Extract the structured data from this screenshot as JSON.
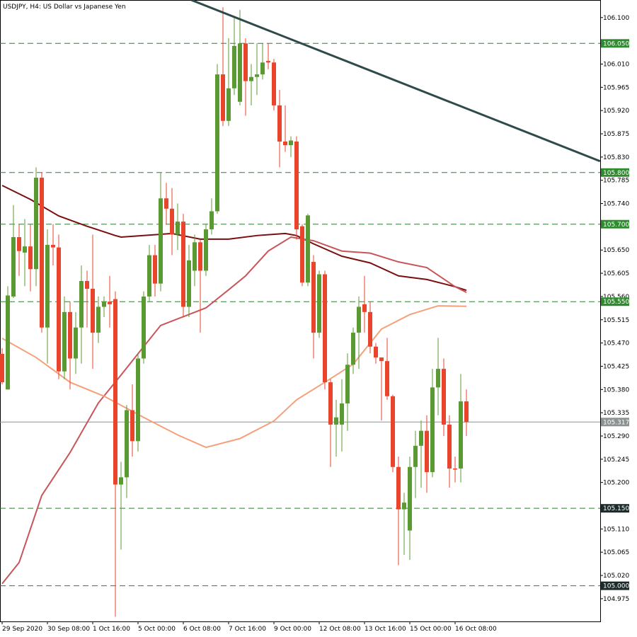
{
  "chart_data": {
    "type": "candlestick",
    "title": "USDJPY, H4:  US Dollar vs Japanese Yen",
    "up_color": "#5b9a32",
    "down_color": "#e8452c",
    "xlim": [
      -0.375,
      105.625
    ],
    "ylim": [
      104.931,
      106.134
    ],
    "xticks": [
      {
        "value": 0,
        "label": "29 Sep 2020"
      },
      {
        "value": 8,
        "label": "30 Sep 08:00"
      },
      {
        "value": 16,
        "label": "1 Oct 16:00"
      },
      {
        "value": 24,
        "label": "5 Oct 00:00"
      },
      {
        "value": 32,
        "label": "6 Oct 08:00"
      },
      {
        "value": 40,
        "label": "7 Oct 16:00"
      },
      {
        "value": 48,
        "label": "9 Oct 00:00"
      },
      {
        "value": 56,
        "label": "12 Oct 08:00"
      },
      {
        "value": 64,
        "label": "13 Oct 16:00"
      },
      {
        "value": 72,
        "label": "15 Oct 00:00"
      },
      {
        "value": 80,
        "label": "16 Oct 08:00"
      }
    ],
    "yticks": [
      {
        "value": 106.1,
        "label": "106.100"
      },
      {
        "value": 106.01,
        "label": "106.010"
      },
      {
        "value": 105.965,
        "label": "105.965"
      },
      {
        "value": 105.92,
        "label": "105.920"
      },
      {
        "value": 105.875,
        "label": "105.875"
      },
      {
        "value": 105.83,
        "label": "105.830"
      },
      {
        "value": 105.785,
        "label": "105.785"
      },
      {
        "value": 105.74,
        "label": "105.740"
      },
      {
        "value": 105.65,
        "label": "105.650"
      },
      {
        "value": 105.605,
        "label": "105.605"
      },
      {
        "value": 105.56,
        "label": "105.560"
      },
      {
        "value": 105.515,
        "label": "105.515"
      },
      {
        "value": 105.47,
        "label": "105.470"
      },
      {
        "value": 105.425,
        "label": "105.425"
      },
      {
        "value": 105.38,
        "label": "105.380"
      },
      {
        "value": 105.335,
        "label": "105.335"
      },
      {
        "value": 105.29,
        "label": "105.290"
      },
      {
        "value": 105.245,
        "label": "105.245"
      },
      {
        "value": 105.2,
        "label": "105.200"
      },
      {
        "value": 105.11,
        "label": "105.110"
      },
      {
        "value": 105.065,
        "label": "105.065"
      },
      {
        "value": 105.02,
        "label": "105.020"
      },
      {
        "value": 104.975,
        "label": "104.975"
      }
    ],
    "open": [
      105.449,
      105.38,
      105.56,
      105.675,
      105.645,
      105.657,
      105.613,
      105.79,
      105.5,
      105.66,
      105.655,
      105.415,
      105.53,
      105.44,
      105.5,
      105.59,
      105.575,
      105.49,
      105.54,
      105.55,
      105.555,
      105.196,
      105.21,
      105.34,
      105.28,
      105.44,
      105.56,
      105.64,
      105.585,
      105.75,
      105.73,
      105.68,
      105.705,
      105.54,
      105.61,
      105.665,
      105.61,
      105.69,
      105.725,
      105.99,
      105.9,
      105.963,
      105.937,
      106.05,
      105.977,
      105.985,
      105.99,
      106.016,
      106.013,
      105.93,
      105.86,
      105.853,
      105.86,
      105.696,
      105.587,
      105.627,
      105.49,
      105.603,
      105.394,
      105.312,
      105.312,
      105.353,
      105.428,
      105.49,
      105.545,
      105.53,
      105.463,
      105.442,
      105.435,
      105.367,
      105.23,
      105.148,
      105.107,
      105.23,
      105.271,
      105.3,
      105.22,
      105.384,
      105.42,
      105.312,
      105.227,
      105.227,
      105.357
    ],
    "high": [
      105.46,
      105.58,
      105.737,
      105.7,
      105.71,
      105.7,
      105.81,
      105.8,
      105.69,
      105.7,
      105.68,
      105.56,
      105.55,
      105.53,
      105.62,
      105.61,
      105.68,
      105.56,
      105.56,
      105.6,
      105.57,
      105.24,
      105.35,
      105.39,
      105.45,
      105.57,
      105.66,
      105.66,
      105.8,
      105.78,
      105.77,
      105.74,
      105.72,
      105.66,
      105.68,
      105.67,
      105.7,
      105.75,
      106.01,
      106.12,
      106.06,
      106.1,
      106.115,
      106.06,
      106.01,
      106.05,
      106.05,
      106.05,
      106.02,
      105.96,
      105.93,
      105.87,
      105.87,
      105.7,
      105.72,
      105.64,
      105.61,
      105.61,
      105.4,
      105.36,
      105.4,
      105.45,
      105.5,
      105.56,
      105.6,
      105.55,
      105.47,
      105.44,
      105.48,
      105.37,
      105.25,
      105.18,
      105.25,
      105.3,
      105.32,
      105.33,
      105.42,
      105.48,
      105.44,
      105.33,
      105.25,
      105.41,
      105.38
    ],
    "low": [
      105.39,
      105.38,
      105.557,
      105.6,
      105.58,
      105.57,
      105.58,
      105.49,
      105.43,
      105.62,
      105.4,
      105.4,
      105.38,
      105.41,
      105.43,
      105.5,
      105.42,
      105.47,
      105.52,
      105.5,
      104.94,
      105.07,
      105.17,
      105.25,
      105.26,
      105.43,
      105.55,
      105.56,
      105.57,
      105.7,
      105.64,
      105.65,
      105.52,
      105.52,
      105.58,
      105.49,
      105.6,
      105.68,
      105.72,
      105.89,
      105.89,
      105.95,
      105.93,
      105.91,
      105.93,
      105.95,
      105.98,
      106.0,
      105.92,
      105.81,
      105.84,
      105.83,
      105.67,
      105.58,
      105.58,
      105.44,
      105.48,
      105.38,
      105.23,
      105.25,
      105.26,
      105.3,
      105.41,
      105.42,
      105.49,
      105.45,
      105.43,
      105.32,
      105.36,
      105.22,
      105.04,
      105.06,
      105.05,
      105.17,
      105.19,
      105.18,
      105.21,
      105.33,
      105.29,
      105.19,
      105.2,
      105.2,
      105.29
    ],
    "close": [
      105.394,
      105.562,
      105.675,
      105.648,
      105.657,
      105.613,
      105.79,
      105.5,
      105.66,
      105.655,
      105.415,
      105.53,
      105.44,
      105.5,
      105.59,
      105.575,
      105.49,
      105.54,
      105.55,
      105.545,
      105.196,
      105.21,
      105.34,
      105.28,
      105.44,
      105.56,
      105.64,
      105.585,
      105.75,
      105.73,
      105.68,
      105.705,
      105.54,
      105.63,
      105.665,
      105.61,
      105.69,
      105.725,
      105.99,
      105.9,
      105.963,
      106.045,
      106.05,
      105.977,
      105.985,
      105.99,
      106.013,
      106.013,
      105.93,
      105.86,
      105.853,
      105.862,
      105.69,
      105.587,
      105.717,
      105.49,
      105.603,
      105.394,
      105.312,
      105.326,
      105.353,
      105.428,
      105.49,
      105.54,
      105.53,
      105.463,
      105.442,
      105.435,
      105.367,
      105.23,
      105.148,
      105.161,
      105.23,
      105.271,
      105.3,
      105.22,
      105.384,
      105.42,
      105.312,
      105.227,
      105.225,
      105.357,
      105.317
    ],
    "series": [
      {
        "color": "#7a0f0f",
        "x": [
          0,
          5,
          10,
          15,
          20,
          21,
          25,
          30,
          35,
          40,
          45,
          50,
          52,
          55,
          60,
          65,
          70,
          75,
          80,
          82
        ],
        "values": [
          105.775,
          105.748,
          105.716,
          105.696,
          105.678,
          105.675,
          105.678,
          105.682,
          105.671,
          105.671,
          105.678,
          105.682,
          105.678,
          105.662,
          105.638,
          105.625,
          105.6,
          105.593,
          105.579,
          105.572
        ]
      },
      {
        "color": "#c8555a",
        "x": [
          0,
          3,
          7,
          12,
          17,
          21,
          25,
          28,
          32,
          36,
          40,
          43,
          47,
          51,
          55,
          60,
          65,
          70,
          75,
          80,
          82
        ],
        "values": [
          105.004,
          105.045,
          105.175,
          105.258,
          105.354,
          105.408,
          105.463,
          105.504,
          105.521,
          105.538,
          105.573,
          105.6,
          105.648,
          105.675,
          105.668,
          105.648,
          105.644,
          105.627,
          105.616,
          105.579,
          105.568
        ]
      },
      {
        "color": "#f5a07a",
        "x": [
          0,
          6,
          12,
          18,
          25,
          31,
          36,
          42,
          48,
          52,
          57,
          62,
          67,
          72,
          77,
          82
        ],
        "values": [
          105.479,
          105.442,
          105.394,
          105.367,
          105.326,
          105.292,
          105.268,
          105.285,
          105.319,
          105.36,
          105.394,
          105.429,
          105.497,
          105.525,
          105.542,
          105.541
        ]
      }
    ],
    "trendline": {
      "color": "#2f4a4a",
      "x": [
        33.4,
        105.6
      ],
      "values": [
        106.134,
        105.822
      ]
    },
    "levels": [
      {
        "value": 106.05,
        "label": "106.050",
        "color": "#2e8b2e"
      },
      {
        "value": 105.8,
        "label": "105.800",
        "color": "#2e8b2e"
      },
      {
        "value": 105.7,
        "label": "105.700",
        "color": "#2e8b2e"
      },
      {
        "value": 105.55,
        "label": "105.550",
        "color": "#2e8b2e"
      },
      {
        "value": 105.15,
        "label": "105.150",
        "color": "#1c2b2b"
      },
      {
        "value": 105.0,
        "label": "105.000",
        "color": "#1c2b2b"
      }
    ],
    "level_line_color": "#2e7d32",
    "last_price": {
      "value": 105.317,
      "label": "105.317",
      "color": "#8a9292"
    }
  }
}
